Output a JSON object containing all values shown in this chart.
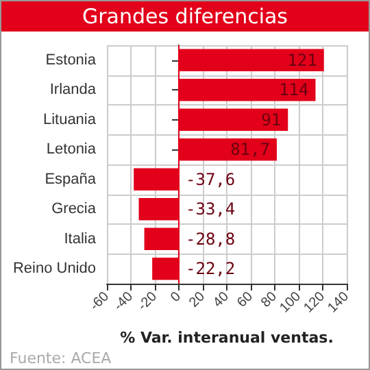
{
  "chart_data": {
    "type": "bar",
    "orientation": "horizontal",
    "title": "Grandes diferencias",
    "xlabel": "% Var. interanual ventas.",
    "categories": [
      "Estonia",
      "Irlanda",
      "Lituania",
      "Letonia",
      "España",
      "Grecia",
      "Italia",
      "Reino Unido"
    ],
    "values": [
      121,
      114,
      91,
      81.7,
      -37.6,
      -33.4,
      -28.8,
      -22.2
    ],
    "value_labels": [
      "121",
      "114",
      "91",
      "81,7",
      "-37,6",
      "-33,4",
      "-28,8",
      "-22,2"
    ],
    "color": "#e2001a",
    "xlim": [
      -60,
      140
    ],
    "xticks": [
      -60,
      -40,
      -20,
      0,
      20,
      40,
      60,
      80,
      100,
      120,
      140
    ],
    "grid": true,
    "ref_lines": [
      {
        "axis": "x",
        "value": 0,
        "color": "#e2001a"
      }
    ],
    "annotations": [
      "Fuente: ACEA"
    ]
  }
}
